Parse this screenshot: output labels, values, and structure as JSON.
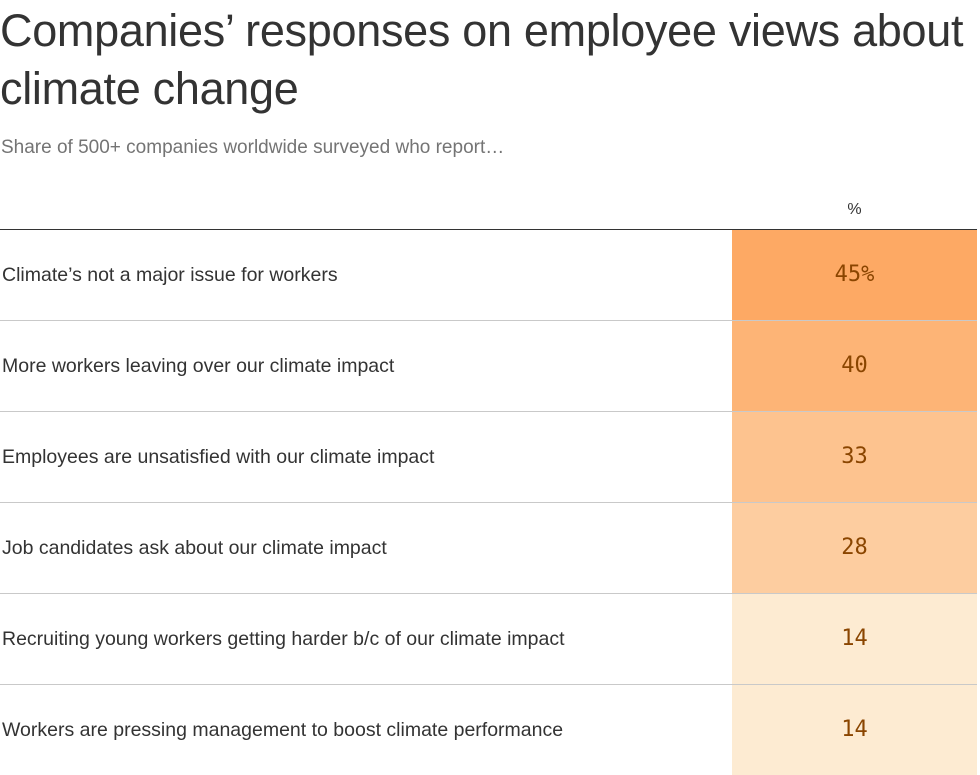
{
  "header": {
    "title": "Companies’ responses on employee views about climate change",
    "subtitle": "Share of 500+ companies worldwide surveyed who report…"
  },
  "table": {
    "column_header": "%"
  },
  "colors": {
    "scale_low": "#fdebd2",
    "scale_high": "#fda964",
    "value_text": "#8a4500",
    "rule": "#333333",
    "divider": "#c9c9c9"
  },
  "chart_data": {
    "type": "table",
    "title": "Companies’ responses on employee views about climate change",
    "subtitle": "Share of 500+ companies worldwide surveyed who report…",
    "column_header": "%",
    "categories": [
      "Climate’s not a major issue for workers",
      "More workers leaving over our climate impact",
      "Employees are unsatisfied with our climate impact",
      "Job candidates ask about our climate impact",
      "Recruiting young workers getting harder b/c of our climate impact",
      "Workers are pressing management to boost climate performance"
    ],
    "values": [
      45,
      40,
      33,
      28,
      14,
      14
    ],
    "value_labels": [
      "45%",
      "40",
      "33",
      "28",
      "14",
      "14"
    ],
    "unit": "%"
  }
}
